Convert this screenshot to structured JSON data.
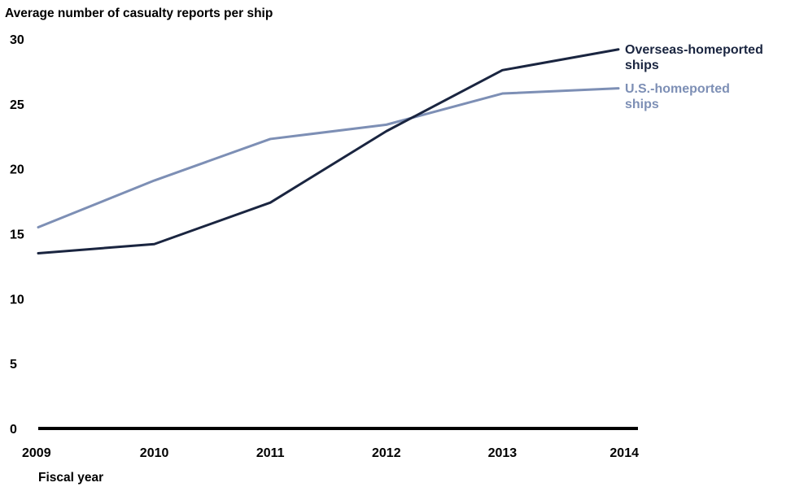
{
  "chart_data": {
    "type": "line",
    "title": "",
    "ylabel": "Average number of casualty reports per ship",
    "xlabel": "Fiscal year",
    "x": [
      2009,
      2010,
      2011,
      2012,
      2013,
      2014
    ],
    "ylim": [
      0,
      30
    ],
    "yticks": [
      0,
      5,
      10,
      15,
      20,
      25,
      30
    ],
    "grid": false,
    "series": [
      {
        "name": "Overseas-homeported ships",
        "label_lines": [
          "Overseas-homeported",
          "ships"
        ],
        "color": "#1a2540",
        "values": [
          13.5,
          14.2,
          17.4,
          22.9,
          27.6,
          29.2
        ]
      },
      {
        "name": "U.S.-homeported ships",
        "label_lines": [
          "U.S.-homeported",
          "ships"
        ],
        "color": "#7d8fb5",
        "values": [
          15.5,
          19.1,
          22.3,
          23.4,
          25.8,
          26.2
        ]
      }
    ]
  }
}
